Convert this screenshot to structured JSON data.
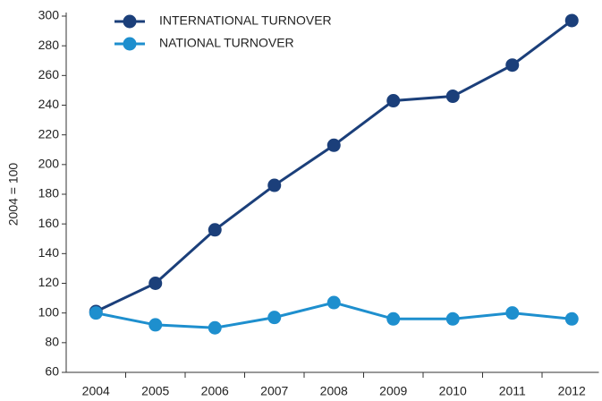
{
  "chart_data": {
    "type": "line",
    "ylabel": "2004 = 100",
    "categories": [
      "2004",
      "2005",
      "2006",
      "2007",
      "2008",
      "2009",
      "2010",
      "2011",
      "2012"
    ],
    "series": [
      {
        "name": "INTERNATIONAL TURNOVER",
        "color": "#1b3f7a",
        "values": [
          101,
          120,
          156,
          186,
          213,
          243,
          246,
          267,
          297
        ]
      },
      {
        "name": "NATIONAL TURNOVER",
        "color": "#1e8fce",
        "values": [
          100,
          92,
          90,
          97,
          107,
          96,
          96,
          100,
          96
        ]
      }
    ],
    "ylim": [
      60,
      300
    ],
    "yticks": [
      60,
      80,
      100,
      120,
      140,
      160,
      180,
      200,
      220,
      240,
      260,
      280,
      300
    ],
    "grid": false,
    "legend": "top-left"
  }
}
